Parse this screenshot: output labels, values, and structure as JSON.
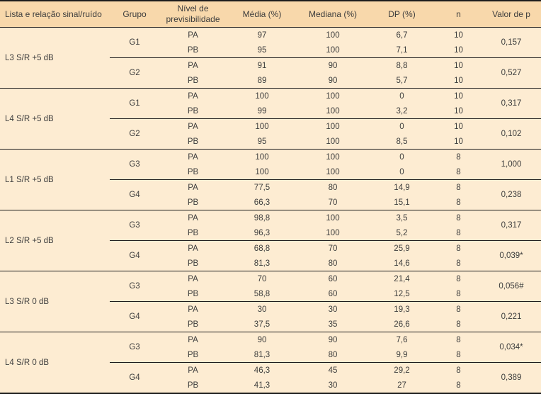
{
  "table": {
    "columns": [
      "Lista e relação sinal/ruído",
      "Grupo",
      "Nível de previsibilidade",
      "Média (%)",
      "Mediana (%)",
      "DP (%)",
      "n",
      "Valor de p"
    ],
    "sections": [
      {
        "list": "L3 S/R +5 dB",
        "groups": [
          {
            "group": "G1",
            "p": "0,157",
            "rows": [
              {
                "level": "PA",
                "media": "97",
                "mediana": "100",
                "dp": "6,7",
                "n": "10"
              },
              {
                "level": "PB",
                "media": "95",
                "mediana": "100",
                "dp": "7,1",
                "n": "10"
              }
            ]
          },
          {
            "group": "G2",
            "p": "0,527",
            "rows": [
              {
                "level": "PA",
                "media": "91",
                "mediana": "90",
                "dp": "8,8",
                "n": "10"
              },
              {
                "level": "PB",
                "media": "89",
                "mediana": "90",
                "dp": "5,7",
                "n": "10"
              }
            ]
          }
        ]
      },
      {
        "list": "L4 S/R +5 dB",
        "groups": [
          {
            "group": "G1",
            "p": "0,317",
            "rows": [
              {
                "level": "PA",
                "media": "100",
                "mediana": "100",
                "dp": "0",
                "n": "10"
              },
              {
                "level": "PB",
                "media": "99",
                "mediana": "100",
                "dp": "3,2",
                "n": "10"
              }
            ]
          },
          {
            "group": "G2",
            "p": "0,102",
            "rows": [
              {
                "level": "PA",
                "media": "100",
                "mediana": "100",
                "dp": "0",
                "n": "10"
              },
              {
                "level": "PB",
                "media": "95",
                "mediana": "100",
                "dp": "8,5",
                "n": "10"
              }
            ]
          }
        ]
      },
      {
        "list": "L1 S/R +5 dB",
        "groups": [
          {
            "group": "G3",
            "p": "1,000",
            "rows": [
              {
                "level": "PA",
                "media": "100",
                "mediana": "100",
                "dp": "0",
                "n": "8"
              },
              {
                "level": "PB",
                "media": "100",
                "mediana": "100",
                "dp": "0",
                "n": "8"
              }
            ]
          },
          {
            "group": "G4",
            "p": "0,238",
            "rows": [
              {
                "level": "PA",
                "media": "77,5",
                "mediana": "80",
                "dp": "14,9",
                "n": "8"
              },
              {
                "level": "PB",
                "media": "66,3",
                "mediana": "70",
                "dp": "15,1",
                "n": "8"
              }
            ]
          }
        ]
      },
      {
        "list": "L2 S/R +5 dB",
        "groups": [
          {
            "group": "G3",
            "p": "0,317",
            "rows": [
              {
                "level": "PA",
                "media": "98,8",
                "mediana": "100",
                "dp": "3,5",
                "n": "8"
              },
              {
                "level": "PB",
                "media": "96,3",
                "mediana": "100",
                "dp": "5,2",
                "n": "8"
              }
            ]
          },
          {
            "group": "G4",
            "p": "0,039*",
            "rows": [
              {
                "level": "PA",
                "media": "68,8",
                "mediana": "70",
                "dp": "25,9",
                "n": "8"
              },
              {
                "level": "PB",
                "media": "81,3",
                "mediana": "80",
                "dp": "14,6",
                "n": "8"
              }
            ]
          }
        ]
      },
      {
        "list": "L3 S/R 0 dB",
        "groups": [
          {
            "group": "G3",
            "p": "0,056#",
            "rows": [
              {
                "level": "PA",
                "media": "70",
                "mediana": "60",
                "dp": "21,4",
                "n": "8"
              },
              {
                "level": "PB",
                "media": "58,8",
                "mediana": "60",
                "dp": "12,5",
                "n": "8"
              }
            ]
          },
          {
            "group": "G4",
            "p": "0,221",
            "rows": [
              {
                "level": "PA",
                "media": "30",
                "mediana": "30",
                "dp": "19,3",
                "n": "8"
              },
              {
                "level": "PB",
                "media": "37,5",
                "mediana": "35",
                "dp": "26,6",
                "n": "8"
              }
            ]
          }
        ]
      },
      {
        "list": "L4 S/R 0 dB",
        "groups": [
          {
            "group": "G3",
            "p": "0,034*",
            "rows": [
              {
                "level": "PA",
                "media": "90",
                "mediana": "90",
                "dp": "7,6",
                "n": "8"
              },
              {
                "level": "PB",
                "media": "81,3",
                "mediana": "80",
                "dp": "9,9",
                "n": "8"
              }
            ]
          },
          {
            "group": "G4",
            "p": "0,389",
            "rows": [
              {
                "level": "PA",
                "media": "46,3",
                "mediana": "45",
                "dp": "29,2",
                "n": "8"
              },
              {
                "level": "PB",
                "media": "41,3",
                "mediana": "30",
                "dp": "27",
                "n": "8"
              }
            ]
          }
        ]
      }
    ],
    "colors": {
      "header_bg": "#f8d8ab",
      "body_bg": "#fdecd2",
      "border": "#1c1c1c",
      "text": "#3d3d3d"
    }
  }
}
